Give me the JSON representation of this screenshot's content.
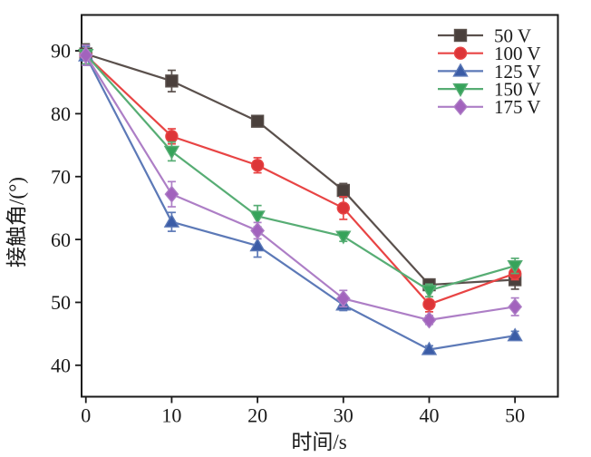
{
  "figure": {
    "background_color": "#ffffff",
    "frame_color": "#1a1a1a",
    "text_color": "#1a1a1a"
  },
  "chart_data": {
    "type": "line",
    "title": "",
    "xlabel": "时间/s",
    "ylabel": "接触角/(°)",
    "xlim": [
      -0.5,
      55
    ],
    "ylim": [
      35,
      95.7
    ],
    "x_ticks": [
      0,
      10,
      20,
      30,
      40,
      50
    ],
    "y_ticks": [
      40,
      50,
      60,
      70,
      80,
      90
    ],
    "grid": false,
    "legend_position": "top-right-inside",
    "x": [
      0,
      10,
      20,
      30,
      40,
      50
    ],
    "series": [
      {
        "name": "50 V",
        "marker": "square",
        "line_color": "#5a504c",
        "marker_color": "#4a403c",
        "values": [
          89.5,
          85.2,
          78.8,
          67.8,
          52.8,
          53.6
        ],
        "errors": [
          1.6,
          1.7,
          0.8,
          1.1,
          0.9,
          1.5
        ]
      },
      {
        "name": "100 V",
        "marker": "circle",
        "line_color": "#e84444",
        "marker_color": "#dd3538",
        "values": [
          89.3,
          76.4,
          71.8,
          65.0,
          49.7,
          54.6
        ],
        "errors": [
          1.5,
          1.2,
          1.2,
          1.8,
          1.2,
          1.0
        ]
      },
      {
        "name": "125 V",
        "marker": "triangle-up",
        "line_color": "#5c79b7",
        "marker_color": "#3b5ca6",
        "values": [
          89.2,
          62.8,
          59.0,
          49.6,
          42.5,
          44.7
        ],
        "errors": [
          1.5,
          1.5,
          1.8,
          0.9,
          0.6,
          0.7
        ]
      },
      {
        "name": "150 V",
        "marker": "triangle-down",
        "line_color": "#57ad74",
        "marker_color": "#36a35a",
        "values": [
          89.4,
          74.0,
          63.7,
          60.5,
          51.9,
          55.8
        ],
        "errors": [
          1.5,
          1.5,
          1.7,
          0.8,
          1.0,
          1.2
        ]
      },
      {
        "name": "175 V",
        "marker": "diamond",
        "line_color": "#ad7ec6",
        "marker_color": "#a263bd",
        "values": [
          89.3,
          67.2,
          61.4,
          50.6,
          47.2,
          49.3
        ],
        "errors": [
          1.6,
          2.0,
          1.3,
          1.3,
          0.7,
          1.4
        ]
      }
    ]
  }
}
